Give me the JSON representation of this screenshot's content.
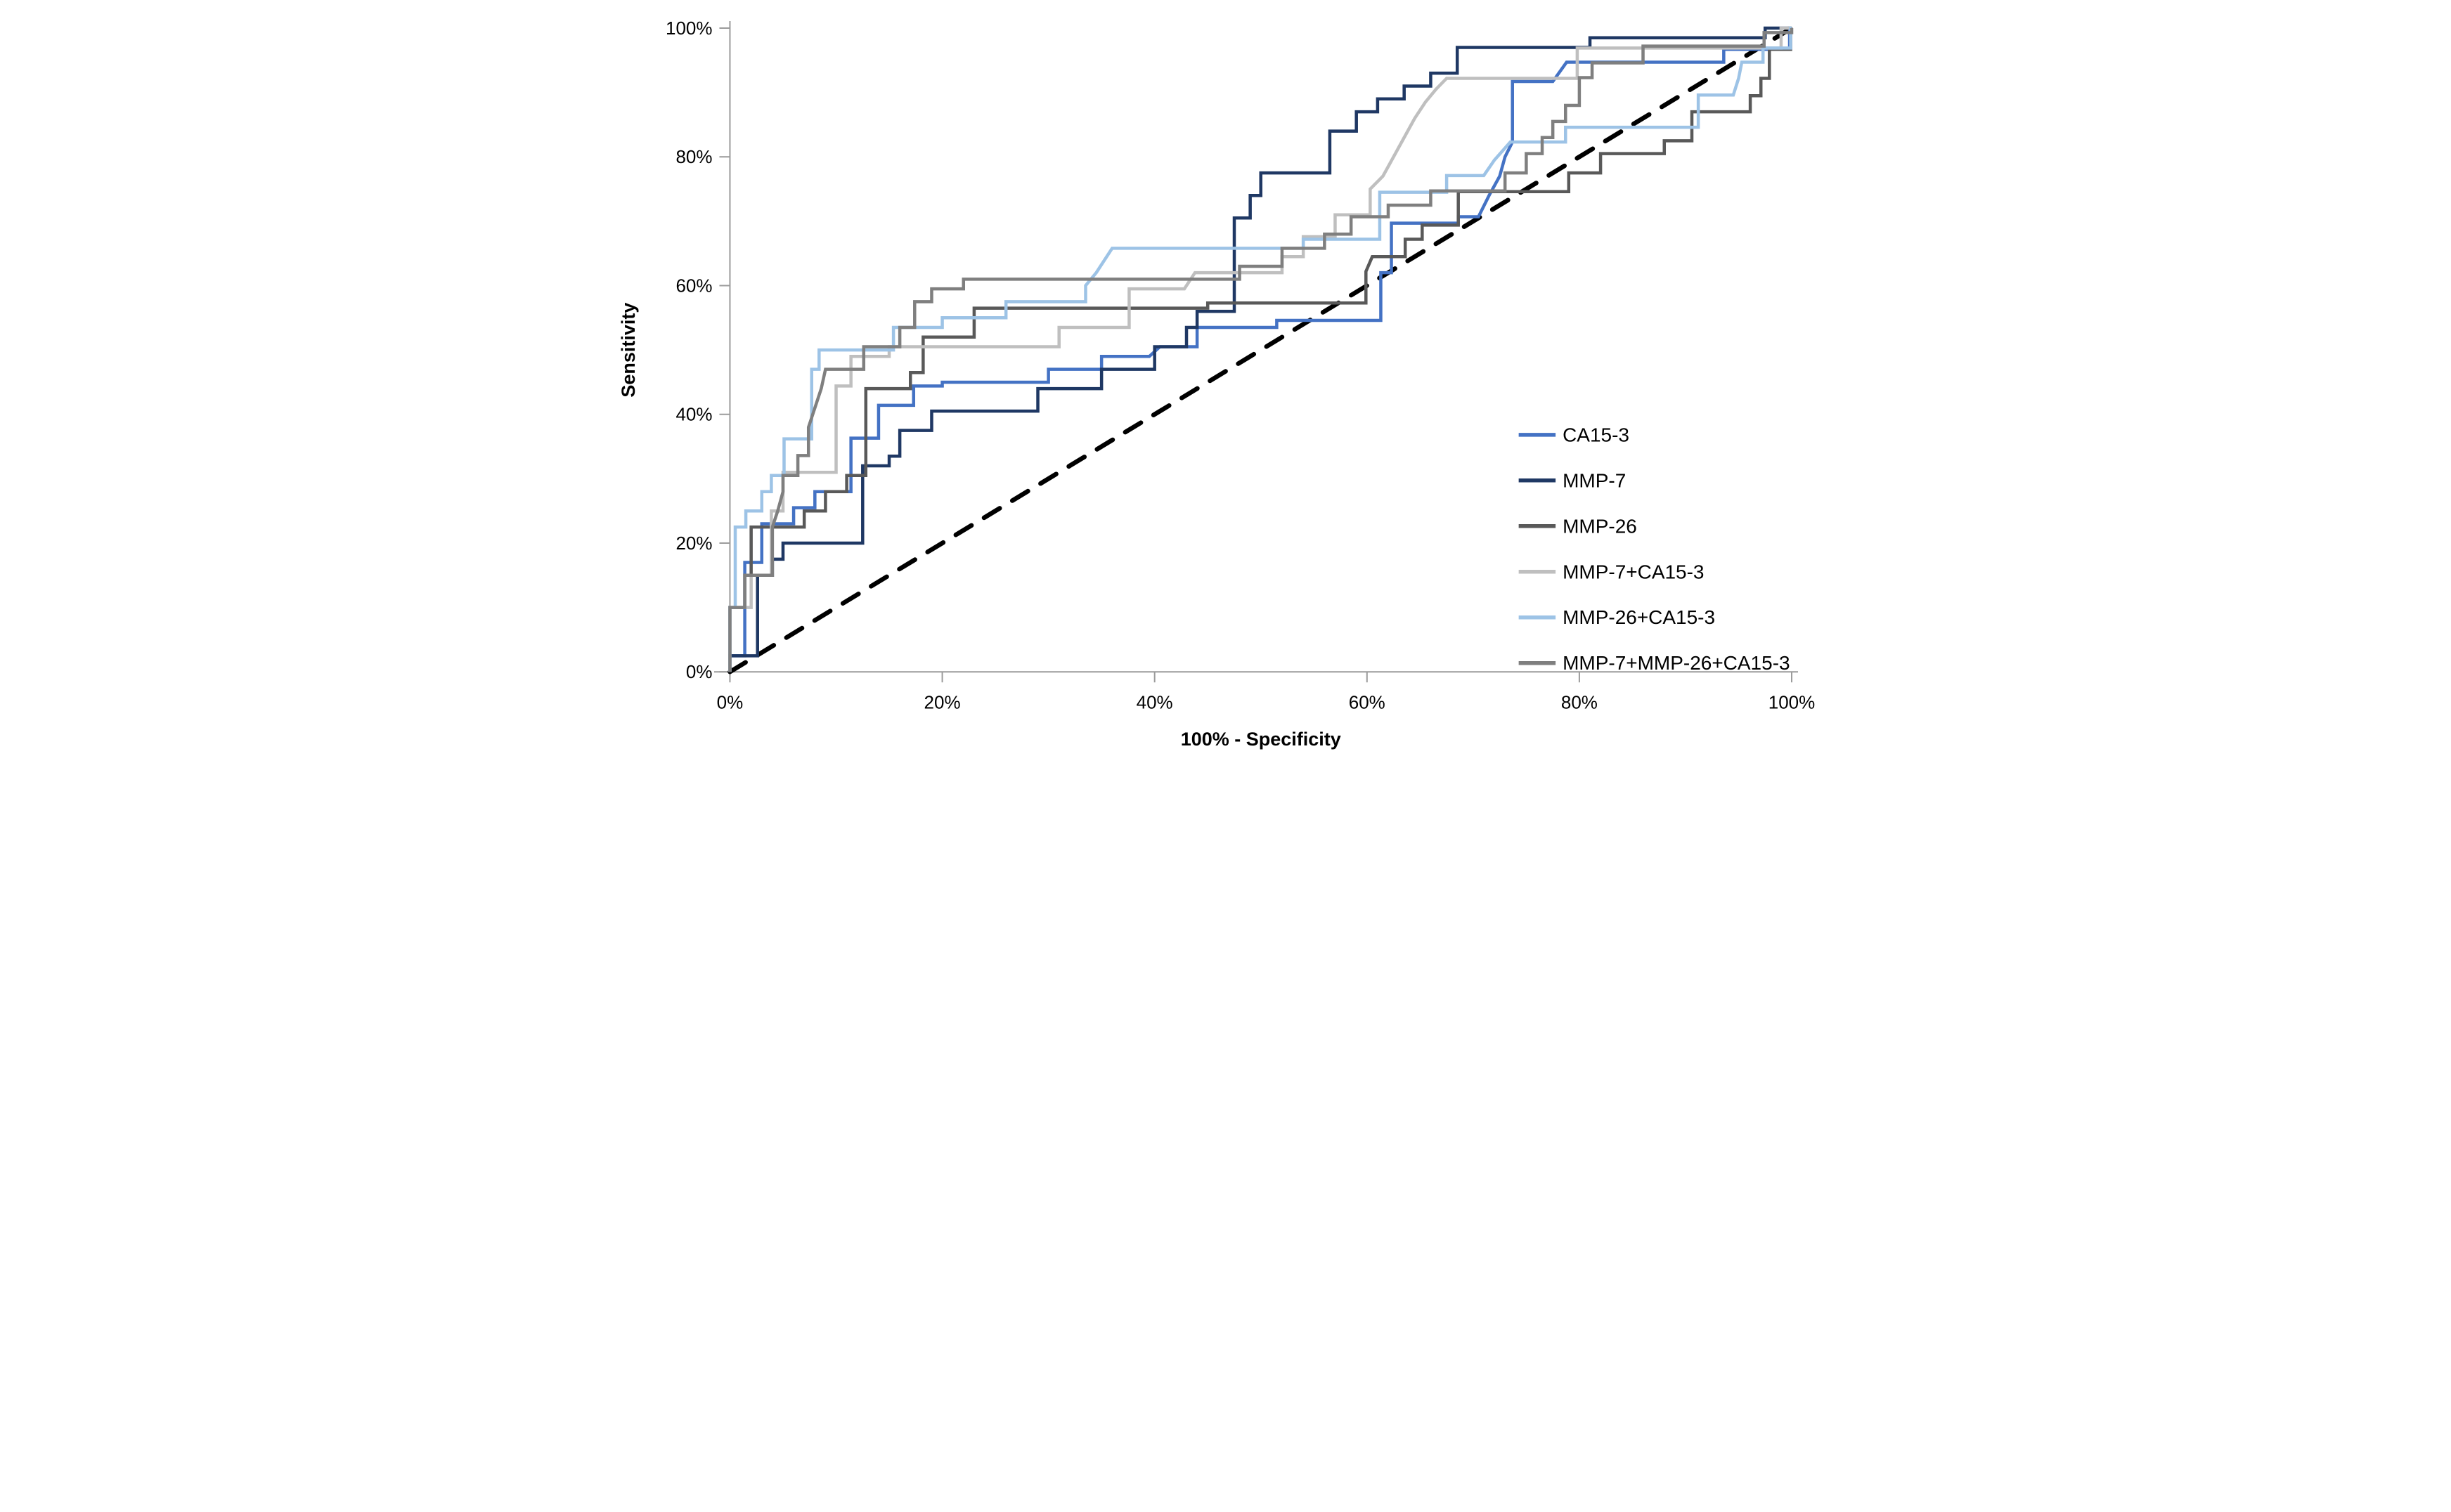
{
  "chart_data": {
    "type": "line",
    "variant": "roc-curves",
    "title": "",
    "xlabel": "100% - Specificity",
    "ylabel": "Sensitivity",
    "xlim": [
      0,
      100
    ],
    "ylim": [
      0,
      100
    ],
    "grid": false,
    "legend_position": "inside-right",
    "axis_color": "#9b9b9b",
    "text_color": "#000000",
    "x_tick_values": [
      0,
      20,
      40,
      60,
      80,
      100
    ],
    "x_tick_labels": [
      "0%",
      "20%",
      "40%",
      "60%",
      "80%",
      "100%"
    ],
    "y_tick_values": [
      0,
      20,
      40,
      60,
      80,
      100
    ],
    "y_tick_labels": [
      "0%",
      "20%",
      "40%",
      "60%",
      "80%",
      "100%"
    ],
    "diagonal_reference": {
      "name": "chance line",
      "style": "dashed",
      "color": "#000000",
      "from": [
        0,
        0
      ],
      "to": [
        100,
        100
      ]
    },
    "series": [
      {
        "name": "CA15-3",
        "color": "#4472C4",
        "points": [
          [
            0,
            0
          ],
          [
            0,
            2.5
          ],
          [
            1.4,
            2.5
          ],
          [
            1.4,
            17
          ],
          [
            3,
            17
          ],
          [
            3,
            23
          ],
          [
            6,
            23
          ],
          [
            6,
            25.5
          ],
          [
            8,
            25.5
          ],
          [
            8,
            28
          ],
          [
            11.4,
            28
          ],
          [
            11.4,
            36.3
          ],
          [
            14,
            36.3
          ],
          [
            14,
            41.4
          ],
          [
            17.3,
            41.4
          ],
          [
            17.3,
            44.4
          ],
          [
            20,
            44.4
          ],
          [
            20,
            45
          ],
          [
            30,
            45
          ],
          [
            30,
            47
          ],
          [
            35,
            47
          ],
          [
            35,
            49
          ],
          [
            39.5,
            49
          ],
          [
            40.5,
            50.5
          ],
          [
            44,
            50.5
          ],
          [
            44,
            53.5
          ],
          [
            51.5,
            53.5
          ],
          [
            51.5,
            54.6
          ],
          [
            61.3,
            54.6
          ],
          [
            61.3,
            62
          ],
          [
            62.3,
            62
          ],
          [
            62.3,
            69.7
          ],
          [
            68.6,
            69.7
          ],
          [
            68.6,
            70.7
          ],
          [
            70.5,
            70.7
          ],
          [
            71.5,
            74
          ],
          [
            72.5,
            77
          ],
          [
            73,
            80
          ],
          [
            73.7,
            82.3
          ],
          [
            73.7,
            91.7
          ],
          [
            77.5,
            91.7
          ],
          [
            78.8,
            94.7
          ],
          [
            93.6,
            94.7
          ],
          [
            93.6,
            96.7
          ],
          [
            99.8,
            96.7
          ],
          [
            99.8,
            100
          ],
          [
            100,
            100
          ]
        ]
      },
      {
        "name": "MMP-7",
        "color": "#1F3864",
        "points": [
          [
            0,
            0
          ],
          [
            0,
            2.5
          ],
          [
            2.6,
            2.5
          ],
          [
            2.6,
            15
          ],
          [
            4,
            15
          ],
          [
            4,
            17.5
          ],
          [
            5,
            17.5
          ],
          [
            5,
            20
          ],
          [
            12.5,
            20
          ],
          [
            12.5,
            32
          ],
          [
            15,
            32
          ],
          [
            15,
            33.5
          ],
          [
            16,
            33.5
          ],
          [
            16,
            37.5
          ],
          [
            19,
            37.5
          ],
          [
            19,
            40.5
          ],
          [
            29,
            40.5
          ],
          [
            29,
            44
          ],
          [
            35,
            44
          ],
          [
            35,
            47
          ],
          [
            40,
            47
          ],
          [
            40,
            50.5
          ],
          [
            43,
            50.5
          ],
          [
            43,
            53.5
          ],
          [
            44,
            53.5
          ],
          [
            44,
            56
          ],
          [
            47.5,
            56
          ],
          [
            47.5,
            70.5
          ],
          [
            49,
            70.5
          ],
          [
            49,
            74
          ],
          [
            50,
            74
          ],
          [
            50,
            77.5
          ],
          [
            56.5,
            77.5
          ],
          [
            56.5,
            84
          ],
          [
            59,
            84
          ],
          [
            59,
            87
          ],
          [
            61,
            87
          ],
          [
            61,
            89
          ],
          [
            63.5,
            89
          ],
          [
            63.5,
            91
          ],
          [
            66,
            91
          ],
          [
            66,
            93
          ],
          [
            68.5,
            93
          ],
          [
            68.5,
            97
          ],
          [
            81,
            97
          ],
          [
            81,
            98.5
          ],
          [
            97.5,
            98.5
          ],
          [
            97.5,
            100
          ],
          [
            100,
            100
          ]
        ]
      },
      {
        "name": "MMP-26",
        "color": "#595959",
        "points": [
          [
            0,
            0
          ],
          [
            0,
            10
          ],
          [
            1.4,
            10
          ],
          [
            1.4,
            15
          ],
          [
            2,
            15
          ],
          [
            2,
            22.5
          ],
          [
            7,
            22.5
          ],
          [
            7,
            25
          ],
          [
            9,
            25
          ],
          [
            9,
            28
          ],
          [
            11,
            28
          ],
          [
            11,
            30.5
          ],
          [
            12.8,
            30.5
          ],
          [
            12.8,
            44
          ],
          [
            17,
            44
          ],
          [
            17,
            46.5
          ],
          [
            18.2,
            46.5
          ],
          [
            18.2,
            52
          ],
          [
            23,
            52
          ],
          [
            23,
            56.5
          ],
          [
            45,
            56.5
          ],
          [
            45,
            57.3
          ],
          [
            59.9,
            57.3
          ],
          [
            59.9,
            62.2
          ],
          [
            60.5,
            64.5
          ],
          [
            63.6,
            64.5
          ],
          [
            63.6,
            67.2
          ],
          [
            65.2,
            67.2
          ],
          [
            65.2,
            69.4
          ],
          [
            68.6,
            69.4
          ],
          [
            68.6,
            74.6
          ],
          [
            79,
            74.6
          ],
          [
            79,
            77.5
          ],
          [
            82,
            77.5
          ],
          [
            82,
            80.5
          ],
          [
            88,
            80.5
          ],
          [
            88,
            82.5
          ],
          [
            90.6,
            82.5
          ],
          [
            90.6,
            87
          ],
          [
            96.1,
            87
          ],
          [
            96.1,
            89.5
          ],
          [
            97.1,
            89.5
          ],
          [
            97.1,
            92.2
          ],
          [
            97.9,
            92.2
          ],
          [
            97.9,
            96.7
          ],
          [
            99.9,
            96.7
          ],
          [
            99.9,
            100
          ],
          [
            100,
            100
          ]
        ]
      },
      {
        "name": "MMP-7+CA15-3",
        "color": "#BFBFBF",
        "points": [
          [
            0,
            0
          ],
          [
            0,
            10
          ],
          [
            2,
            10
          ],
          [
            2,
            15
          ],
          [
            3.9,
            15
          ],
          [
            3.9,
            25
          ],
          [
            5,
            25
          ],
          [
            5,
            31
          ],
          [
            10,
            31
          ],
          [
            10,
            44.4
          ],
          [
            11.4,
            44.4
          ],
          [
            11.4,
            49
          ],
          [
            15,
            49
          ],
          [
            15,
            50.5
          ],
          [
            31,
            50.5
          ],
          [
            31,
            53.5
          ],
          [
            37.6,
            53.5
          ],
          [
            37.6,
            59.5
          ],
          [
            42.8,
            59.5
          ],
          [
            43.8,
            62
          ],
          [
            52,
            62
          ],
          [
            52,
            64.5
          ],
          [
            54,
            64.5
          ],
          [
            54,
            67.6
          ],
          [
            57,
            67.6
          ],
          [
            57,
            71
          ],
          [
            60.3,
            71
          ],
          [
            60.3,
            75
          ],
          [
            61.5,
            77
          ],
          [
            62.5,
            80
          ],
          [
            63.5,
            83
          ],
          [
            64.5,
            86
          ],
          [
            65.5,
            88.5
          ],
          [
            66.5,
            90.5
          ],
          [
            67.5,
            92.2
          ],
          [
            79.8,
            92.2
          ],
          [
            79.8,
            96.9
          ],
          [
            99,
            96.9
          ],
          [
            99,
            100
          ],
          [
            100,
            100
          ]
        ]
      },
      {
        "name": "MMP-26+CA15-3",
        "color": "#9DC3E6",
        "points": [
          [
            0,
            0
          ],
          [
            0,
            10
          ],
          [
            0.5,
            10
          ],
          [
            0.5,
            22.5
          ],
          [
            1.5,
            22.5
          ],
          [
            1.5,
            25
          ],
          [
            3,
            25
          ],
          [
            3,
            28
          ],
          [
            3.9,
            28
          ],
          [
            3.9,
            30.5
          ],
          [
            5.1,
            30.5
          ],
          [
            5.1,
            36.2
          ],
          [
            7.7,
            36.2
          ],
          [
            7.7,
            47
          ],
          [
            8.4,
            47
          ],
          [
            8.4,
            50
          ],
          [
            15.4,
            50
          ],
          [
            15.4,
            53.5
          ],
          [
            20,
            53.5
          ],
          [
            20,
            55
          ],
          [
            26,
            55
          ],
          [
            26,
            57.5
          ],
          [
            33.5,
            57.5
          ],
          [
            33.5,
            60
          ],
          [
            34.5,
            62
          ],
          [
            36,
            65.8
          ],
          [
            54,
            65.8
          ],
          [
            54,
            67.2
          ],
          [
            61.2,
            67.2
          ],
          [
            61.2,
            74.5
          ],
          [
            67.5,
            74.5
          ],
          [
            67.5,
            77.1
          ],
          [
            71,
            77.1
          ],
          [
            72,
            79.5
          ],
          [
            73.5,
            82.3
          ],
          [
            78.7,
            82.3
          ],
          [
            78.7,
            84.6
          ],
          [
            91.2,
            84.6
          ],
          [
            91.2,
            89.6
          ],
          [
            94.5,
            89.6
          ],
          [
            95,
            92.2
          ],
          [
            95.3,
            94.7
          ],
          [
            97.3,
            94.7
          ],
          [
            97.3,
            96.9
          ],
          [
            99.9,
            96.9
          ],
          [
            99.9,
            100
          ],
          [
            100,
            100
          ]
        ]
      },
      {
        "name": "MMP-7+MMP-26+CA15-3",
        "color": "#7F7F7F",
        "points": [
          [
            0,
            0
          ],
          [
            0,
            10
          ],
          [
            1.4,
            10
          ],
          [
            1.4,
            15
          ],
          [
            4,
            15
          ],
          [
            4,
            22.5
          ],
          [
            4.5,
            25
          ],
          [
            5,
            28
          ],
          [
            5,
            30.5
          ],
          [
            6.4,
            30.5
          ],
          [
            6.4,
            33.6
          ],
          [
            7.4,
            33.6
          ],
          [
            7.4,
            38
          ],
          [
            8,
            41
          ],
          [
            8.6,
            44
          ],
          [
            9,
            47
          ],
          [
            12.6,
            47
          ],
          [
            12.6,
            50.5
          ],
          [
            16,
            50.5
          ],
          [
            16,
            53.5
          ],
          [
            17.4,
            53.5
          ],
          [
            17.4,
            57.5
          ],
          [
            19,
            57.5
          ],
          [
            19,
            59.5
          ],
          [
            22,
            59.5
          ],
          [
            22,
            61
          ],
          [
            48,
            61
          ],
          [
            48,
            63
          ],
          [
            52,
            63
          ],
          [
            52,
            65.8
          ],
          [
            56,
            65.8
          ],
          [
            56,
            68
          ],
          [
            58.5,
            68
          ],
          [
            58.5,
            70.7
          ],
          [
            62,
            70.7
          ],
          [
            62,
            72.5
          ],
          [
            66,
            72.5
          ],
          [
            66,
            74.7
          ],
          [
            73,
            74.7
          ],
          [
            73,
            77.5
          ],
          [
            75,
            77.5
          ],
          [
            75,
            80.5
          ],
          [
            76.5,
            80.5
          ],
          [
            76.5,
            83
          ],
          [
            77.5,
            83
          ],
          [
            77.5,
            85.5
          ],
          [
            78.7,
            85.5
          ],
          [
            78.7,
            88
          ],
          [
            80,
            88
          ],
          [
            80,
            92.3
          ],
          [
            81.2,
            92.3
          ],
          [
            81.2,
            94.6
          ],
          [
            86,
            94.6
          ],
          [
            86,
            97.2
          ],
          [
            97.4,
            97.2
          ],
          [
            97.4,
            99.3
          ],
          [
            100,
            99.3
          ],
          [
            100,
            100
          ]
        ]
      }
    ]
  }
}
